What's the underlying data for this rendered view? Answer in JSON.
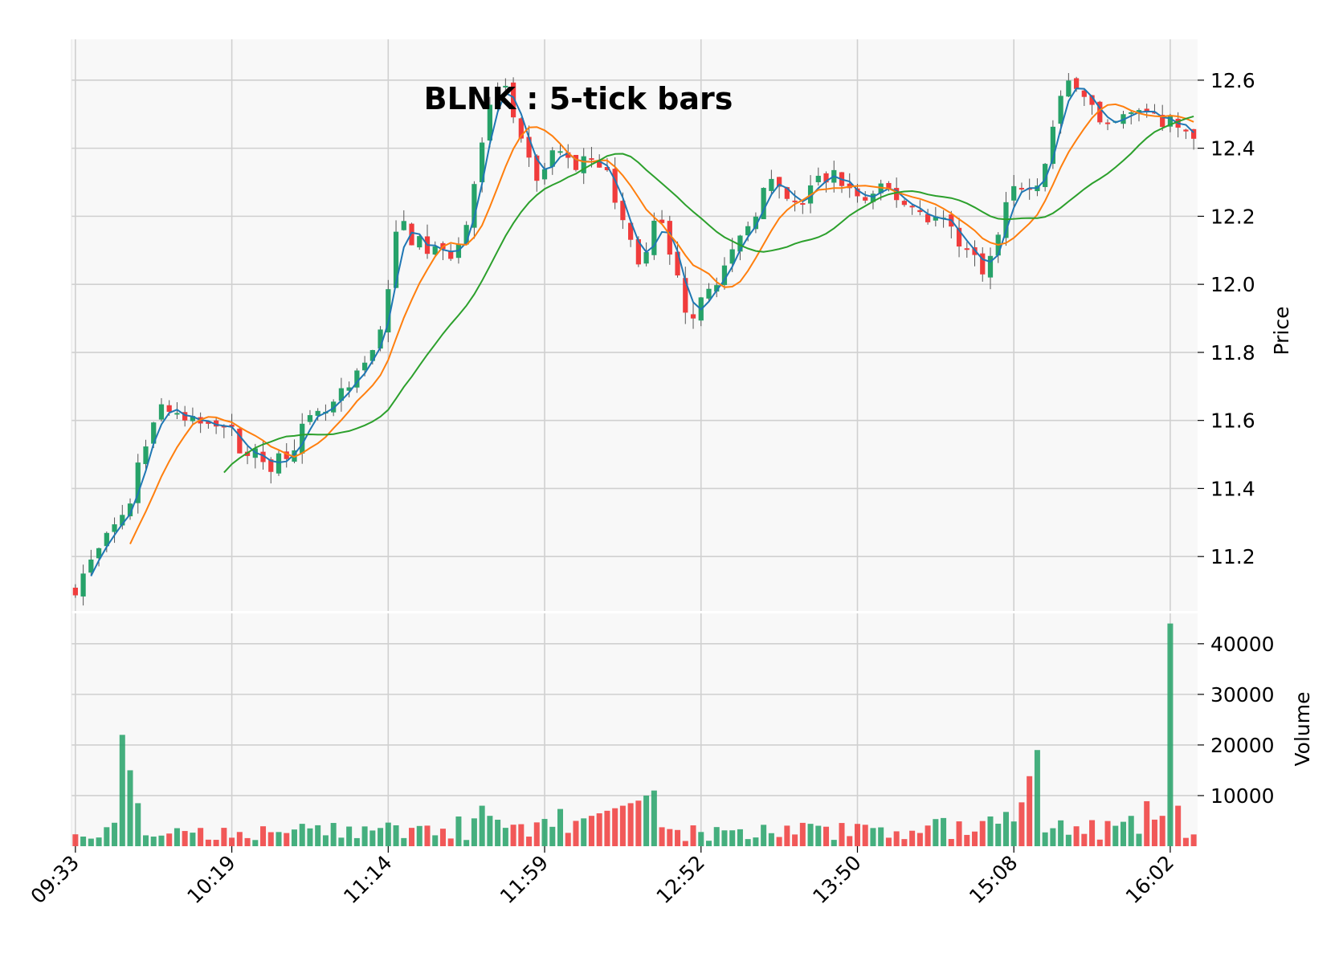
{
  "chart_data": {
    "type": "candlestick",
    "title": "BLNK : 5-tick bars",
    "price_panel": {
      "ylabel": "Price",
      "ylim": [
        11.04,
        12.72
      ],
      "yticks": [
        11.2,
        11.4,
        11.6,
        11.8,
        12.0,
        12.2,
        12.4,
        12.6
      ],
      "ytick_labels": [
        "11.2",
        "11.4",
        "11.6",
        "11.8",
        "12.0",
        "12.2",
        "12.4",
        "12.6"
      ]
    },
    "volume_panel": {
      "ylabel": "Volume",
      "ylim": [
        0,
        46000
      ],
      "yticks": [
        10000,
        20000,
        30000,
        40000
      ],
      "ytick_labels": [
        "10000",
        "20000",
        "30000",
        "40000"
      ]
    },
    "x_axis": {
      "bar_count": 144,
      "ticks": [
        {
          "index": 0,
          "label": "09:33"
        },
        {
          "index": 20,
          "label": "10:19"
        },
        {
          "index": 40,
          "label": "11:14"
        },
        {
          "index": 60,
          "label": "11:59"
        },
        {
          "index": 80,
          "label": "12:52"
        },
        {
          "index": 100,
          "label": "13:50"
        },
        {
          "index": 120,
          "label": "15:08"
        },
        {
          "index": 140,
          "label": "16:02"
        }
      ]
    },
    "price_path": [
      [
        0,
        11.1
      ],
      [
        5,
        11.26
      ],
      [
        8,
        11.4
      ],
      [
        10,
        11.6
      ],
      [
        12,
        11.65
      ],
      [
        15,
        11.58
      ],
      [
        18,
        11.62
      ],
      [
        22,
        11.52
      ],
      [
        25,
        11.47
      ],
      [
        27,
        11.5
      ],
      [
        30,
        11.58
      ],
      [
        33,
        11.63
      ],
      [
        36,
        11.7
      ],
      [
        38,
        11.78
      ],
      [
        40,
        11.92
      ],
      [
        42,
        12.2
      ],
      [
        44,
        12.12
      ],
      [
        46,
        12.1
      ],
      [
        48,
        12.08
      ],
      [
        50,
        12.15
      ],
      [
        52,
        12.35
      ],
      [
        54,
        12.55
      ],
      [
        55,
        12.62
      ],
      [
        57,
        12.42
      ],
      [
        60,
        12.3
      ],
      [
        62,
        12.42
      ],
      [
        64,
        12.33
      ],
      [
        66,
        12.4
      ],
      [
        68,
        12.35
      ],
      [
        71,
        12.15
      ],
      [
        73,
        12.05
      ],
      [
        75,
        12.2
      ],
      [
        77,
        12.05
      ],
      [
        79,
        11.9
      ],
      [
        81,
        12.0
      ],
      [
        84,
        12.05
      ],
      [
        87,
        12.2
      ],
      [
        89,
        12.3
      ],
      [
        91,
        12.25
      ],
      [
        93,
        12.22
      ],
      [
        95,
        12.3
      ],
      [
        98,
        12.32
      ],
      [
        100,
        12.26
      ],
      [
        102,
        12.24
      ],
      [
        104,
        12.28
      ],
      [
        106,
        12.25
      ],
      [
        108,
        12.22
      ],
      [
        110,
        12.2
      ],
      [
        112,
        12.18
      ],
      [
        114,
        12.12
      ],
      [
        116,
        12.05
      ],
      [
        118,
        12.08
      ],
      [
        120,
        12.3
      ],
      [
        122,
        12.3
      ],
      [
        124,
        12.32
      ],
      [
        126,
        12.5
      ],
      [
        128,
        12.62
      ],
      [
        130,
        12.55
      ],
      [
        132,
        12.43
      ],
      [
        134,
        12.48
      ],
      [
        136,
        12.5
      ],
      [
        138,
        12.52
      ],
      [
        140,
        12.47
      ],
      [
        143,
        12.45
      ]
    ],
    "moving_averages": [
      {
        "period": 3,
        "color": "#1f77b4"
      },
      {
        "period": 8,
        "color": "#ff7f0e"
      },
      {
        "period": 20,
        "color": "#2ca02c"
      }
    ],
    "volume_path": [
      [
        0,
        1500
      ],
      [
        3,
        1500
      ],
      [
        5,
        2500
      ],
      [
        6,
        22000
      ],
      [
        7,
        15000
      ],
      [
        9,
        2000
      ],
      [
        20,
        2000
      ],
      [
        40,
        2500
      ],
      [
        50,
        3000
      ],
      [
        52,
        8000
      ],
      [
        55,
        2000
      ],
      [
        60,
        3000
      ],
      [
        72,
        9000
      ],
      [
        74,
        11000
      ],
      [
        75,
        2000
      ],
      [
        90,
        2500
      ],
      [
        110,
        3000
      ],
      [
        120,
        3500
      ],
      [
        123,
        19000
      ],
      [
        124,
        2500
      ],
      [
        135,
        3000
      ],
      [
        139,
        6000
      ],
      [
        140,
        44000
      ],
      [
        141,
        8000
      ],
      [
        142,
        1500
      ],
      [
        143,
        1500
      ]
    ],
    "up_color": "#26a269",
    "down_color": "#f03c3c",
    "grid": true,
    "background": "#f8f8f8",
    "grid_color": "#d0d0d0"
  }
}
